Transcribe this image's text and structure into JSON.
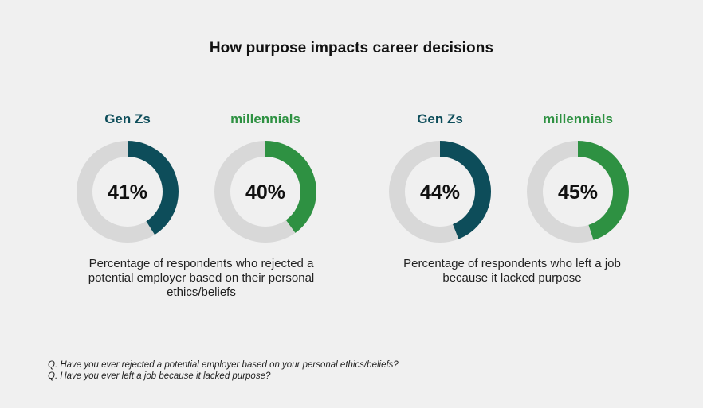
{
  "title": "How purpose impacts career decisions",
  "colors": {
    "genz": "#0d4d5a",
    "millennials": "#2e9142",
    "track": "#d8d8d8",
    "background": "#f0f0f0"
  },
  "chart_data": [
    {
      "type": "pie",
      "categories": [
        "Gen Zs",
        "millennials"
      ],
      "values": [
        41,
        40
      ],
      "labels": [
        "41%",
        "40%"
      ],
      "caption": "Percentage of respondents who rejected a potential employer based on their personal ethics/beliefs"
    },
    {
      "type": "pie",
      "categories": [
        "Gen Zs",
        "millennials"
      ],
      "values": [
        44,
        45
      ],
      "labels": [
        "44%",
        "45%"
      ],
      "caption": "Percentage of respondents who left a job because it lacked purpose"
    }
  ],
  "captions": {
    "left_line1": "Percentage of respondents who rejected a",
    "left_line2": "potential employer based on their personal",
    "left_line3": "ethics/beliefs",
    "right_line1": "Percentage of respondents who left a job",
    "right_line2": "because it lacked purpose"
  },
  "footnotes": [
    "Q. Have you ever rejected a potential employer based on your personal ethics/beliefs?",
    "Q. Have you ever left a job because it lacked purpose?"
  ]
}
